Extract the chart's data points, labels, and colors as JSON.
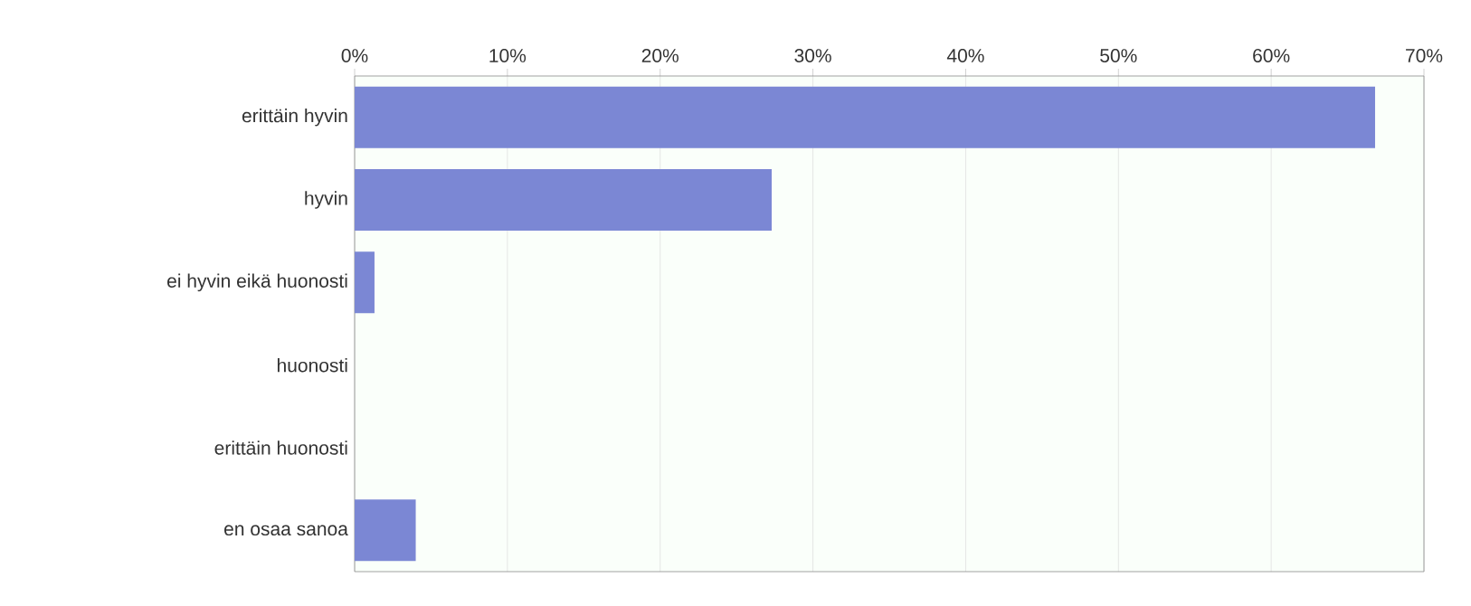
{
  "chart_data": {
    "type": "bar",
    "orientation": "horizontal",
    "categories": [
      "erittäin hyvin",
      "hyvin",
      "ei hyvin eikä huonosti",
      "huonosti",
      "erittäin huonosti",
      "en osaa sanoa"
    ],
    "values": [
      66.8,
      27.3,
      1.3,
      0,
      0,
      4.0
    ],
    "color": "#7b87d4",
    "xlim": [
      0,
      70
    ],
    "xticks": [
      {
        "value": 0,
        "label": "0%"
      },
      {
        "value": 10,
        "label": "10%"
      },
      {
        "value": 20,
        "label": "20%"
      },
      {
        "value": 30,
        "label": "30%"
      },
      {
        "value": 40,
        "label": "40%"
      },
      {
        "value": 50,
        "label": "50%"
      },
      {
        "value": 60,
        "label": "60%"
      },
      {
        "value": 70,
        "label": "70%"
      }
    ],
    "grid": "x"
  }
}
